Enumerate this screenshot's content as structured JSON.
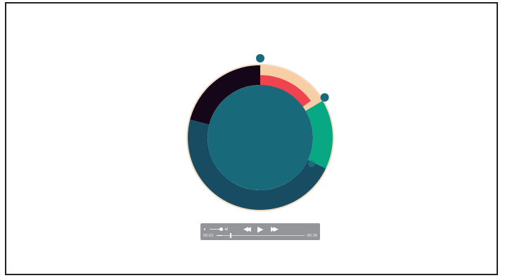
{
  "visual": {
    "colors": {
      "ring_outline": "#f2dcc3",
      "center_disc": "#186a7b",
      "marker": "#186a7b",
      "marker_faint": "#1b7a87"
    },
    "rings": [
      {
        "name": "outer",
        "segments": [
          {
            "label": "peach",
            "color": "#f8cea7",
            "fraction": 0.165
          },
          {
            "label": "green",
            "color": "#07a883",
            "fraction": 0.155
          },
          {
            "label": "dark-teal",
            "color": "#184c63",
            "fraction": 0.47
          },
          {
            "label": "near-black",
            "color": "#150619",
            "fraction": 0.21
          }
        ]
      },
      {
        "name": "inner",
        "segments": [
          {
            "label": "red",
            "color": "#ef444f",
            "fraction": 0.15
          }
        ]
      }
    ],
    "markers": [
      {
        "name": "top-handle",
        "angle_deg": 0
      },
      {
        "name": "side-handle",
        "angle_deg": 58
      },
      {
        "name": "faint-dot",
        "angle_deg": 117
      }
    ]
  },
  "player": {
    "volume_low_icon": "speaker-low-icon",
    "volume_high_icon": "speaker-high-icon",
    "volume_level": 0.85,
    "rewind_icon": "rewind-icon",
    "play_icon": "play-icon",
    "forward_icon": "fast-forward-icon",
    "rewind_glyph": "◀◀",
    "play_glyph": "▶",
    "forward_glyph": "▶▶",
    "volume_low_glyph": "◂",
    "volume_high_glyph": "◂)",
    "current_time": "00:02",
    "remaining_time": "-00:36",
    "progress": 0.06
  }
}
